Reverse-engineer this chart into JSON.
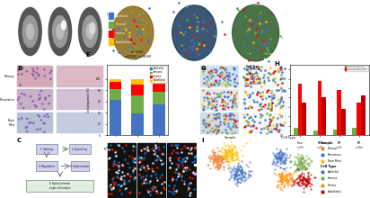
{
  "background_color": "#ffffff",
  "panel_label_fontsize": 5,
  "panel_label_weight": "bold",
  "cell_types": [
    "Epithelial",
    "Immune",
    "Stroma",
    "Endothelial"
  ],
  "cell_colors": [
    "#4472c4",
    "#70ad47",
    "#ff0000",
    "#ffc000"
  ],
  "samples": [
    "Primary",
    "Recurrence",
    "Brain Meta"
  ],
  "sample_colors_umap": {
    "Primary": "#ed7d31",
    "Recurrence": "#4472c4",
    "Brain Meta": "#ffc000"
  },
  "cell_colors_umap": {
    "Epithelial": "#4472c4",
    "Immune": "#70ad47",
    "Stroma": "#ff8c00",
    "Endothelial": "#c00000"
  },
  "bar_E_epithelial": [
    0.62,
    0.38,
    0.55
  ],
  "bar_E_immune": [
    0.2,
    0.32,
    0.22
  ],
  "bar_E_stroma": [
    0.12,
    0.2,
    0.16
  ],
  "bar_E_endothelial": [
    0.06,
    0.1,
    0.07
  ],
  "D_tissue_bg": "#111111",
  "mri_bg": "#000000",
  "he_bg": "#e8d5e0"
}
